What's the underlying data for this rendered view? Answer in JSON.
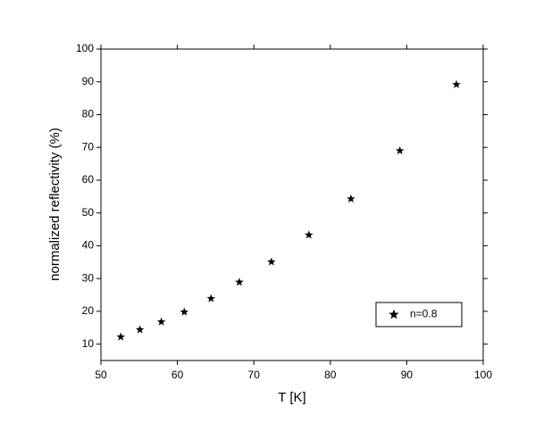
{
  "chart_data": {
    "type": "scatter",
    "x_label": "T [K]",
    "y_label": "normalized reflectivity (%)",
    "series": [
      {
        "name": "n=0.8",
        "color": "#000000",
        "marker": "star",
        "x": [
          52.6,
          55.1,
          57.9,
          60.9,
          64.4,
          68.1,
          72.3,
          77.2,
          82.7,
          89.1,
          96.5
        ],
        "values": [
          12.2,
          14.4,
          16.8,
          19.8,
          23.9,
          28.9,
          35.1,
          43.3,
          54.3,
          69.0,
          89.2
        ]
      }
    ],
    "xlim": [
      50,
      100
    ],
    "xticks": [
      50,
      60,
      70,
      80,
      90,
      100
    ],
    "ylim": [
      5,
      100
    ],
    "yticks": [
      10,
      20,
      30,
      40,
      50,
      60,
      70,
      80,
      90,
      100
    ],
    "legend": "lower right",
    "grid": false
  }
}
